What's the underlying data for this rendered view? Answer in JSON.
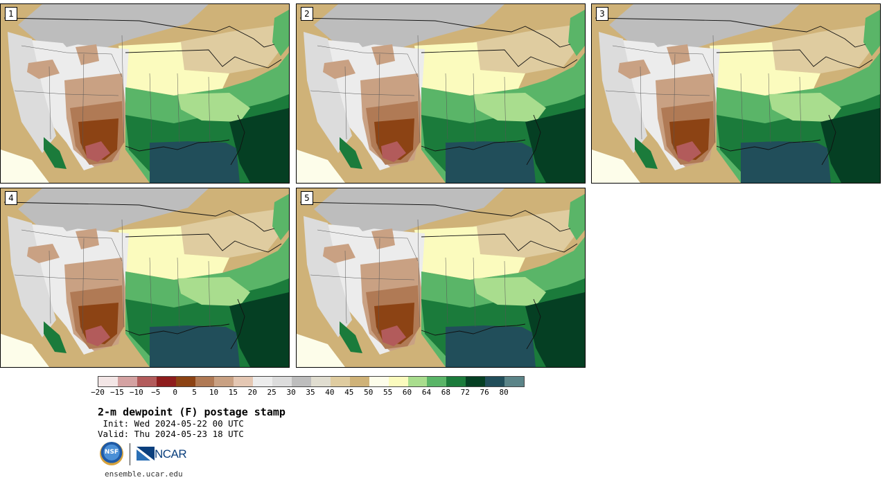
{
  "title": "2-m dewpoint (F) postage stamp",
  "init": " Init: Wed 2024-05-22 00 UTC",
  "valid": "Valid: Thu 2024-05-23 18 UTC",
  "website": "ensemble.ucar.edu",
  "logos": {
    "nsf": "NSF",
    "ncar": "NCAR"
  },
  "panels": [
    {
      "label": "1"
    },
    {
      "label": "2"
    },
    {
      "label": "3"
    },
    {
      "label": "4"
    },
    {
      "label": "5"
    }
  ],
  "colorbar": {
    "colors": [
      "#f3e6e6",
      "#d4a2a2",
      "#b25b5b",
      "#8e1d1d",
      "#8c4314",
      "#b07a55",
      "#c9a183",
      "#e4c7b3",
      "#ececec",
      "#dcdcdc",
      "#bdbdbd",
      "#e0ddd0",
      "#dfcca0",
      "#cfb278",
      "#fdfdea",
      "#fbfbbe",
      "#a9dd8e",
      "#5ab568",
      "#1b7b3b",
      "#053f23",
      "#214e5a",
      "#5b8488"
    ],
    "ticks": [
      "−20",
      "−15",
      "−10",
      "−5",
      "0",
      "5",
      "10",
      "15",
      "20",
      "25",
      "30",
      "35",
      "40",
      "45",
      "50",
      "55",
      "60",
      "64",
      "68",
      "72",
      "76",
      "80"
    ]
  }
}
